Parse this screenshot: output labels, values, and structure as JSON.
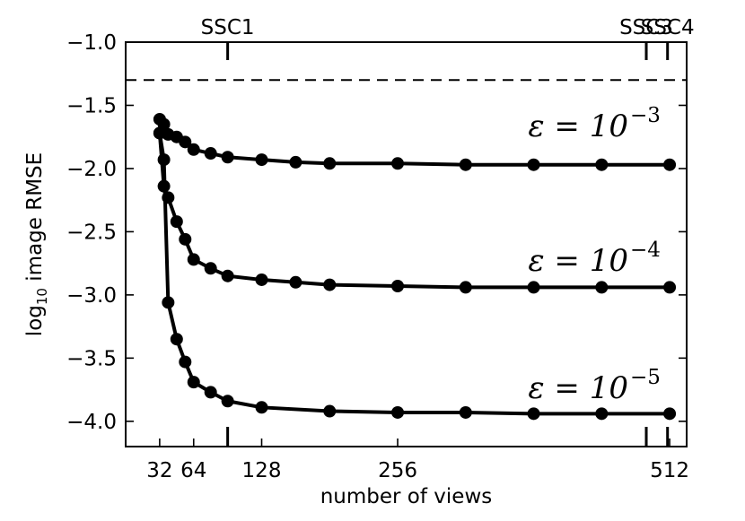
{
  "chart_data": {
    "type": "line",
    "xlabel": "number of views",
    "ylabel_prefix": "log",
    "ylabel_sub": "10",
    "ylabel_suffix": " image RMSE",
    "xlim": [
      0,
      528
    ],
    "ylim": [
      -4.2,
      -1.0
    ],
    "x_ticks": [
      32,
      64,
      128,
      256,
      512
    ],
    "x_tick_labels": [
      "32",
      "64",
      "128",
      "256",
      "512"
    ],
    "y_ticks": [
      -1.0,
      -1.5,
      -2.0,
      -2.5,
      -3.0,
      -3.5,
      -4.0
    ],
    "y_tick_labels": [
      "−1.0",
      "−1.5",
      "−2.0",
      "−2.5",
      "−3.0",
      "−3.5",
      "−4.0"
    ],
    "reference_line": {
      "y": -1.3,
      "style": "dashed"
    },
    "top_markers": [
      {
        "label": "SSC1",
        "x": 96
      },
      {
        "label": "SSC3",
        "x": 490
      },
      {
        "label": "SSC4",
        "x": 510
      }
    ],
    "series": [
      {
        "label_base": "ε = 10",
        "label_exp": "−3",
        "x": [
          32,
          36,
          40,
          48,
          56,
          64,
          80,
          96,
          128,
          160,
          192,
          256,
          320,
          384,
          448,
          512
        ],
        "y": [
          -1.61,
          -1.65,
          -1.73,
          -1.75,
          -1.79,
          -1.85,
          -1.88,
          -1.91,
          -1.93,
          -1.95,
          -1.96,
          -1.96,
          -1.97,
          -1.97,
          -1.97,
          -1.97
        ]
      },
      {
        "label_base": "ε = 10",
        "label_exp": "−4",
        "x": [
          32,
          36,
          40,
          48,
          56,
          64,
          80,
          96,
          128,
          160,
          192,
          256,
          320,
          384,
          448,
          512
        ],
        "y": [
          -1.72,
          -2.14,
          -2.23,
          -2.42,
          -2.56,
          -2.72,
          -2.79,
          -2.85,
          -2.88,
          -2.9,
          -2.92,
          -2.93,
          -2.94,
          -2.94,
          -2.94,
          -2.94
        ]
      },
      {
        "label_base": "ε = 10",
        "label_exp": "−5",
        "x": [
          32,
          36,
          40,
          48,
          56,
          64,
          80,
          96,
          128,
          192,
          256,
          320,
          384,
          448,
          512
        ],
        "y": [
          -1.72,
          -1.93,
          -3.06,
          -3.35,
          -3.53,
          -3.69,
          -3.77,
          -3.84,
          -3.89,
          -3.92,
          -3.93,
          -3.93,
          -3.94,
          -3.94,
          -3.94
        ]
      }
    ]
  }
}
